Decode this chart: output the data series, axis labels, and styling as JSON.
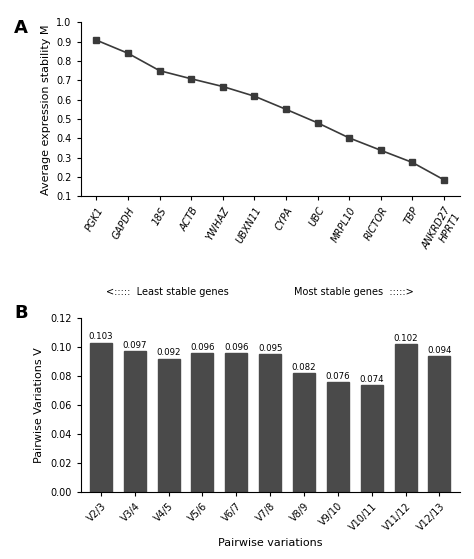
{
  "panel_A": {
    "x_labels": [
      "PGK1",
      "GAPDH",
      "18S",
      "ACTB",
      "YWHAZ",
      "UBXN11",
      "CYPA",
      "UBC",
      "MRPL10",
      "RICTOR",
      "TBP",
      "ANKRD27\nHPRT1"
    ],
    "y_values": [
      0.908,
      0.84,
      0.75,
      0.708,
      0.668,
      0.618,
      0.55,
      0.48,
      0.402,
      0.338,
      0.275,
      0.185
    ],
    "ylabel": "Average expression stability M",
    "ylim": [
      0.1,
      1.0
    ],
    "yticks": [
      0.1,
      0.2,
      0.3,
      0.4,
      0.5,
      0.6,
      0.7,
      0.8,
      0.9,
      1.0
    ],
    "xlabel_left": "<:::::  Least stable genes",
    "xlabel_right": "Most stable genes  :::::>",
    "marker": "s",
    "color": "#3a3a3a",
    "panel_label": "A"
  },
  "panel_B": {
    "x_labels": [
      "V2/3",
      "V3/4",
      "V4/5",
      "V5/6",
      "V6/7",
      "V7/8",
      "V8/9",
      "V9/10",
      "V10/11",
      "V11/12",
      "V12/13"
    ],
    "y_values": [
      0.103,
      0.097,
      0.092,
      0.096,
      0.096,
      0.095,
      0.082,
      0.076,
      0.074,
      0.102,
      0.094
    ],
    "ylabel": "Pairwise Variations V",
    "xlabel": "Pairwise variations",
    "ylim": [
      0.0,
      0.12
    ],
    "yticks": [
      0.0,
      0.02,
      0.04,
      0.06,
      0.08,
      0.1,
      0.12
    ],
    "bar_color": "#4a4a4a",
    "panel_label": "B"
  }
}
